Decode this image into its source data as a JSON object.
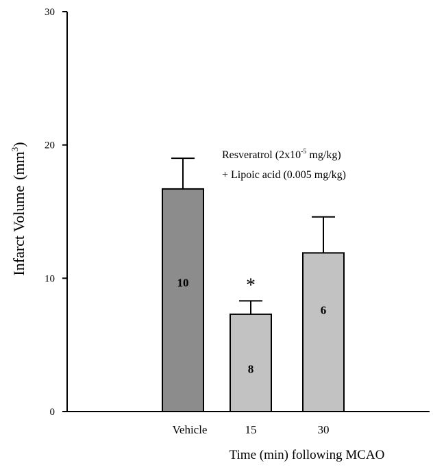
{
  "chart_data": {
    "type": "bar",
    "ylabel": "Infarct Volume",
    "ylabel_unit_base": "mm",
    "ylabel_unit_exp": "3",
    "xlabel": "Time (min) following MCAO",
    "ylim": [
      0,
      30
    ],
    "yticks": [
      "0",
      "10",
      "20",
      "30"
    ],
    "grid": false,
    "categories": [
      "Vehicle",
      "15",
      "30"
    ],
    "values": [
      16.7,
      7.3,
      11.9
    ],
    "errors": [
      2.3,
      1.0,
      2.7
    ],
    "bar_labels": [
      "10",
      "8",
      "6"
    ],
    "significance": [
      "",
      "*",
      ""
    ],
    "bar_colors": [
      "#8c8c8c",
      "#c2c2c2",
      "#c2c2c2"
    ],
    "annotation": {
      "line1_prefix": "Resveratrol (2x10",
      "line1_exp": "-5",
      "line1_suffix": " mg/kg)",
      "line2": "+ Lipoic acid (0.005 mg/kg)"
    }
  }
}
